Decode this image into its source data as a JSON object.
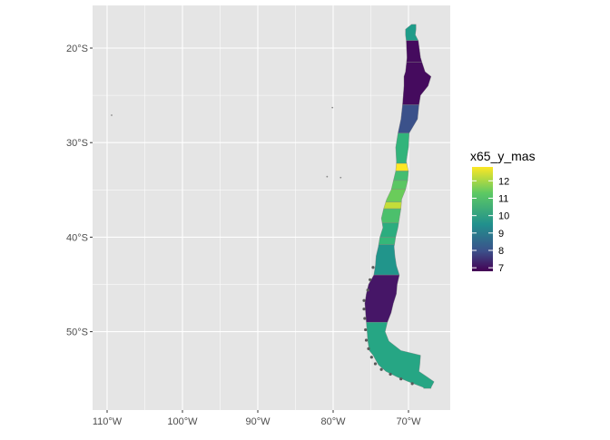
{
  "map": {
    "lat_ticks": [
      "20°S",
      "30°S",
      "40°S",
      "50°S"
    ],
    "lon_ticks": [
      "110°W",
      "100°W",
      "90°W",
      "80°W",
      "70°W"
    ],
    "lat_values": [
      -20,
      -30,
      -40,
      -50
    ],
    "lon_values": [
      -110,
      -100,
      -90,
      -80,
      -70
    ],
    "lon_range": [
      -112,
      -65
    ],
    "lat_range": [
      -57,
      -16
    ],
    "panel_color": "#e5e5e5",
    "grid_color": "#ffffff",
    "palette": "viridis"
  },
  "legend": {
    "title": "x65_y_mas",
    "position": "right",
    "labels": [
      "12",
      "11",
      "10",
      "9",
      "8",
      "7"
    ],
    "values": [
      12,
      11,
      10,
      9,
      8,
      7
    ],
    "range": [
      6.8,
      12.8
    ]
  },
  "chart_data": {
    "type": "choropleth",
    "fill_variable": "x65_y_mas",
    "regions": [
      {
        "lat_n": -17.5,
        "lat_s": -19.2,
        "value": 10.5
      },
      {
        "lat_n": -19.2,
        "lat_s": -21.5,
        "value": 7.0
      },
      {
        "lat_n": -21.5,
        "lat_s": -26.0,
        "value": 7.0
      },
      {
        "lat_n": -26.0,
        "lat_s": -29.0,
        "value": 8.5
      },
      {
        "lat_n": -29.0,
        "lat_s": -32.2,
        "value": 11.2
      },
      {
        "lat_n": -32.2,
        "lat_s": -33.0,
        "value": 12.8
      },
      {
        "lat_n": -33.0,
        "lat_s": -34.0,
        "value": 11.5
      },
      {
        "lat_n": -34.0,
        "lat_s": -34.9,
        "value": 11.8
      },
      {
        "lat_n": -34.9,
        "lat_s": -36.3,
        "value": 12.0
      },
      {
        "lat_n": -36.3,
        "lat_s": -37.0,
        "value": 12.5
      },
      {
        "lat_n": -37.0,
        "lat_s": -38.5,
        "value": 11.6
      },
      {
        "lat_n": -38.5,
        "lat_s": -40.0,
        "value": 11.0
      },
      {
        "lat_n": -40.0,
        "lat_s": -40.8,
        "value": 11.3
      },
      {
        "lat_n": -40.8,
        "lat_s": -44.0,
        "value": 10.3
      },
      {
        "lat_n": -44.0,
        "lat_s": -49.0,
        "value": 7.2
      },
      {
        "lat_n": -49.0,
        "lat_s": -56.0,
        "value": 10.8
      }
    ]
  }
}
